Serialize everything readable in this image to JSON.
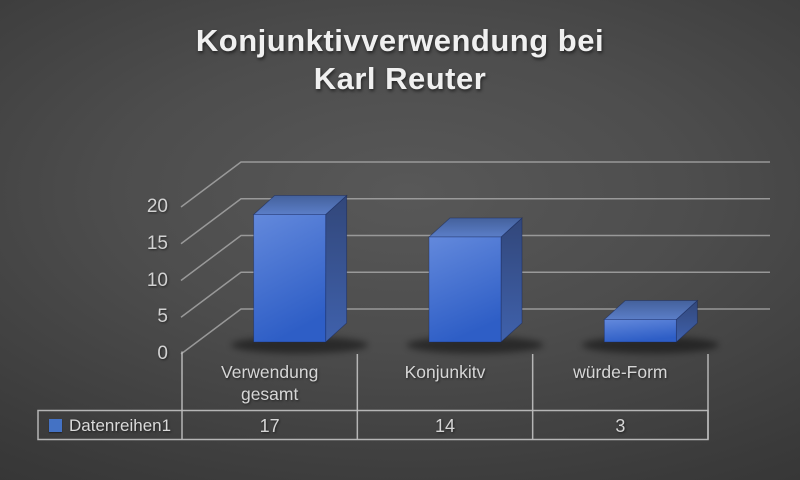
{
  "title": {
    "lines": [
      "Konjunktivverwendung bei",
      "Karl Reuter"
    ],
    "text": "Konjunktivverwendung bei Karl Reuter"
  },
  "chart_data": {
    "type": "bar",
    "style": "3d-column",
    "title": "Konjunktivverwendung bei Karl Reuter",
    "categories": [
      "Verwendung gesamt",
      "Konjunkitv",
      "würde-Form"
    ],
    "category_display_lines": [
      [
        "Verwendung",
        "gesamt"
      ],
      [
        "Konjunkitv"
      ],
      [
        "würde-Form"
      ]
    ],
    "series": [
      {
        "name": "Datenreihen1",
        "values": [
          17,
          14,
          3
        ]
      }
    ],
    "yticks": [
      0,
      5,
      10,
      15,
      20
    ],
    "ylim": [
      0,
      20
    ],
    "xlabel": "",
    "ylabel": "",
    "grid": true,
    "legend_position": "data-table-left",
    "data_table_shown": true,
    "colors": {
      "bar_front_top": "#6389dc",
      "bar_front_bottom": "#2e5ec6",
      "bar_top_back": "#44619c",
      "bar_top_front": "#5b7ec8",
      "bar_side_top": "#32477a",
      "bar_side_bottom": "#3f61ac",
      "legend_marker": "#4472c4",
      "gridline": "#a6a6a6",
      "table_border": "#bcbcbc",
      "text": "#d6d6d6",
      "title_text": "#f0f0f0"
    }
  }
}
